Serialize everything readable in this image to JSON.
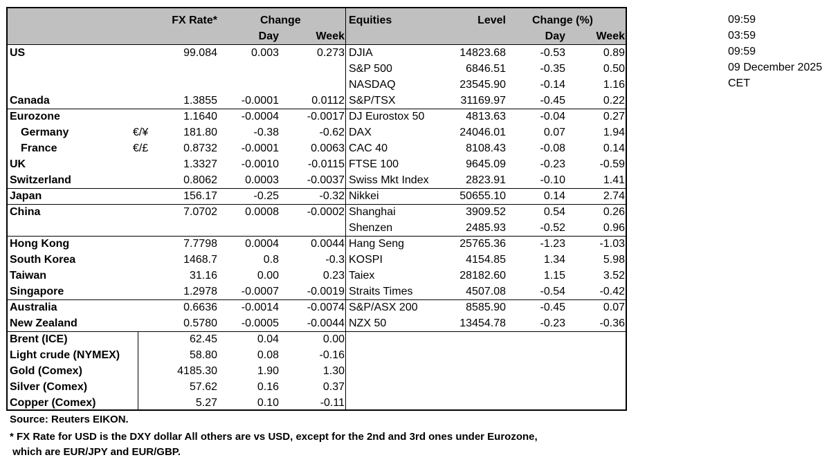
{
  "header": {
    "fx_rate": "FX Rate*",
    "change": "Change",
    "day": "Day",
    "week": "Week",
    "equities": "Equities",
    "level": "Level",
    "change_pct": "Change (%)",
    "eq_day": "Day",
    "eq_week": "Week"
  },
  "rows": [
    {
      "name": "US",
      "sub": "",
      "fx": "99.084",
      "day": "0.003",
      "week": "0.273",
      "eq": "DJIA",
      "level": "14823.68",
      "eq_day": "-0.53",
      "eq_week": "0.89",
      "sep": false
    },
    {
      "name": "",
      "sub": "",
      "fx": "",
      "day": "",
      "week": "",
      "eq": "S&P 500",
      "level": "6846.51",
      "eq_day": "-0.35",
      "eq_week": "0.50",
      "sep": false
    },
    {
      "name": "",
      "sub": "",
      "fx": "",
      "day": "",
      "week": "",
      "eq": "NASDAQ",
      "level": "23545.90",
      "eq_day": "-0.14",
      "eq_week": "1.16",
      "sep": false
    },
    {
      "name": "Canada",
      "sub": "",
      "fx": "1.3855",
      "day": "-0.0001",
      "week": "0.0112",
      "eq": "S&P/TSX",
      "level": "31169.97",
      "eq_day": "-0.45",
      "eq_week": "0.22",
      "sep": true
    },
    {
      "name": "Eurozone",
      "sub": "",
      "fx": "1.1640",
      "day": "-0.0004",
      "week": "-0.0017",
      "eq": "DJ Eurostox 50",
      "level": "4813.63",
      "eq_day": "-0.04",
      "eq_week": "0.27",
      "sep": false
    },
    {
      "name": "Germany",
      "indent": true,
      "sub": "€/¥",
      "fx": "181.80",
      "day": "-0.38",
      "week": "-0.62",
      "eq": "DAX",
      "level": "24046.01",
      "eq_day": "0.07",
      "eq_week": "1.94",
      "sep": false
    },
    {
      "name": "France",
      "indent": true,
      "sub": "€/£",
      "fx": "0.8732",
      "day": "-0.0001",
      "week": "0.0063",
      "eq": "CAC 40",
      "level": "8108.43",
      "eq_day": "-0.08",
      "eq_week": "0.14",
      "sep": false
    },
    {
      "name": "UK",
      "sub": "",
      "fx": "1.3327",
      "day": "-0.0010",
      "week": "-0.0115",
      "eq": "FTSE 100",
      "level": "9645.09",
      "eq_day": "-0.23",
      "eq_week": "-0.59",
      "sep": false
    },
    {
      "name": "Switzerland",
      "sub": "",
      "fx": "0.8062",
      "day": "0.0003",
      "week": "-0.0037",
      "eq": "Swiss Mkt Index",
      "level": "2823.91",
      "eq_day": "-0.10",
      "eq_week": "1.41",
      "sep": true
    },
    {
      "name": "Japan",
      "sub": "",
      "fx": "156.17",
      "day": "-0.25",
      "week": "-0.32",
      "eq": "Nikkei",
      "level": "50655.10",
      "eq_day": "0.14",
      "eq_week": "2.74",
      "sep": true
    },
    {
      "name": "China",
      "sub": "",
      "fx": "7.0702",
      "day": "0.0008",
      "week": "-0.0002",
      "eq": "Shanghai",
      "level": "3909.52",
      "eq_day": "0.54",
      "eq_week": "0.26",
      "sep": false
    },
    {
      "name": "",
      "sub": "",
      "fx": "",
      "day": "",
      "week": "",
      "eq": "Shenzen",
      "level": "2485.93",
      "eq_day": "-0.52",
      "eq_week": "0.96",
      "sep": true
    },
    {
      "name": "Hong Kong",
      "sub": "",
      "fx": "7.7798",
      "day": "0.0004",
      "week": "0.0044",
      "eq": "Hang Seng",
      "level": "25765.36",
      "eq_day": "-1.23",
      "eq_week": "-1.03",
      "sep": false
    },
    {
      "name": "South Korea",
      "sub": "",
      "fx": "1468.7",
      "day": "0.8",
      "week": "-0.3",
      "eq": "KOSPI",
      "level": "4154.85",
      "eq_day": "1.34",
      "eq_week": "5.98",
      "sep": false
    },
    {
      "name": "Taiwan",
      "sub": "",
      "fx": "31.16",
      "day": "0.00",
      "week": "0.23",
      "eq": "Taiex",
      "level": "28182.60",
      "eq_day": "1.15",
      "eq_week": "3.52",
      "sep": false
    },
    {
      "name": "Singapore",
      "sub": "",
      "fx": "1.2978",
      "day": "-0.0007",
      "week": "-0.0019",
      "eq": "Straits Times",
      "level": "4507.08",
      "eq_day": "-0.54",
      "eq_week": "-0.42",
      "sep": true
    },
    {
      "name": "Australia",
      "sub": "",
      "fx": "0.6636",
      "day": "-0.0014",
      "week": "-0.0074",
      "eq": "S&P/ASX  200",
      "level": "8585.90",
      "eq_day": "-0.45",
      "eq_week": "0.07",
      "sep": false
    },
    {
      "name": "New Zealand",
      "sub": "",
      "fx": "0.5780",
      "day": "-0.0005",
      "week": "-0.0044",
      "eq": "NZX 50",
      "level": "13454.78",
      "eq_day": "-0.23",
      "eq_week": "-0.36",
      "sep": true
    },
    {
      "name": "Brent (ICE)",
      "sub": "",
      "fx": "62.45",
      "day": "0.04",
      "week": "0.00",
      "eq": "",
      "level": "",
      "eq_day": "",
      "eq_week": "",
      "sep": false,
      "commodity": true
    },
    {
      "name": "Light crude (NYMEX)",
      "sub": "",
      "fx": "58.80",
      "day": "0.08",
      "week": "-0.16",
      "eq": "",
      "level": "",
      "eq_day": "",
      "eq_week": "",
      "sep": false,
      "commodity": true
    },
    {
      "name": "Gold (Comex)",
      "sub": "",
      "fx": "4185.30",
      "day": "1.90",
      "week": "1.30",
      "eq": "",
      "level": "",
      "eq_day": "",
      "eq_week": "",
      "sep": false,
      "commodity": true
    },
    {
      "name": "Silver (Comex)",
      "sub": "",
      "fx": "57.62",
      "day": "0.16",
      "week": "0.37",
      "eq": "",
      "level": "",
      "eq_day": "",
      "eq_week": "",
      "sep": false,
      "commodity": true
    },
    {
      "name": "Copper (Comex)",
      "sub": "",
      "fx": "5.27",
      "day": "0.10",
      "week": "-0.11",
      "eq": "",
      "level": "",
      "eq_day": "",
      "eq_week": "",
      "sep": false,
      "commodity": true
    }
  ],
  "side": [
    "09:59",
    "03:59",
    "09:59",
    "09 December 2025",
    "CET"
  ],
  "footer": {
    "source": "Source:  Reuters EIKON.",
    "note1": "* FX Rate for USD is the DXY dollar  All others are vs USD, except for the 2nd and 3rd ones under Eurozone,",
    "note2": " which are EUR/JPY and EUR/GBP."
  }
}
